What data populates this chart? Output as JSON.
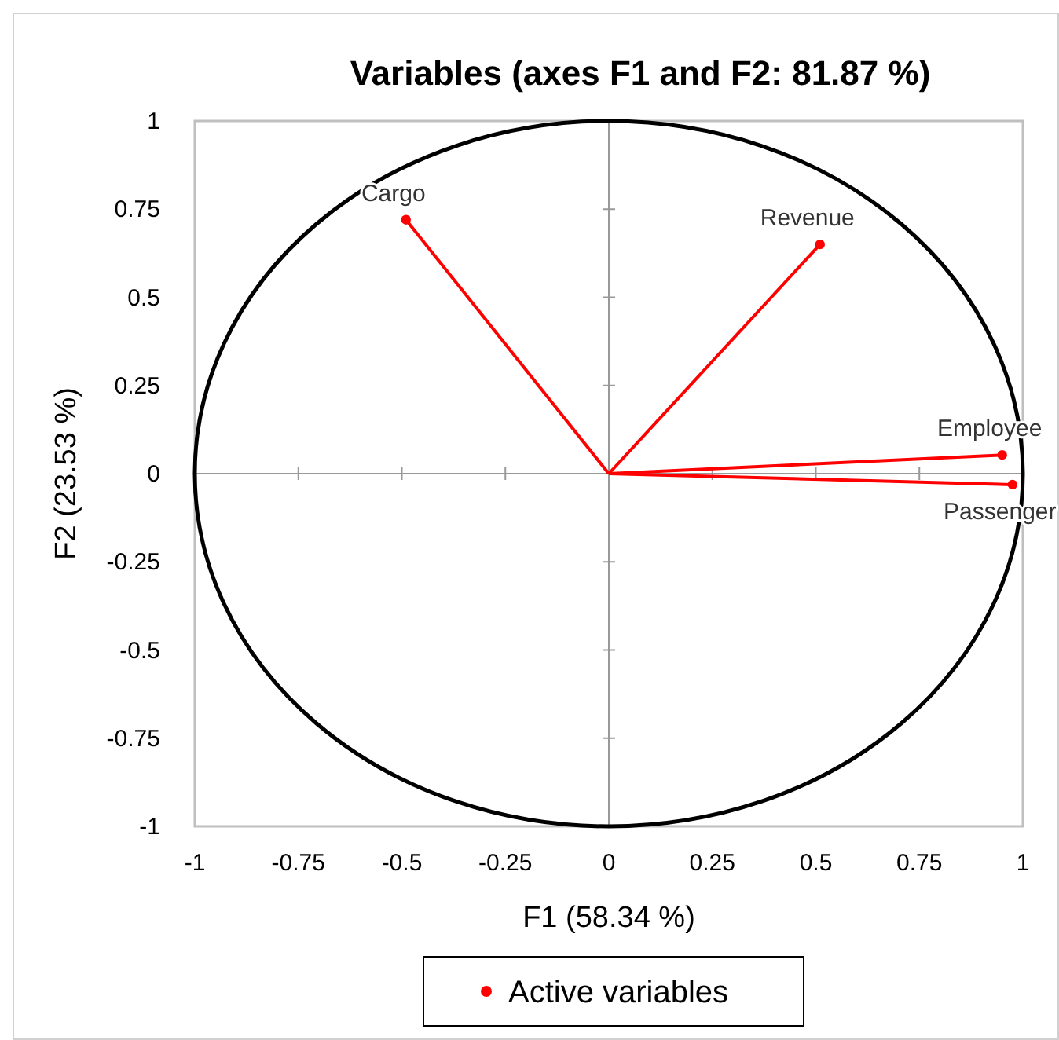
{
  "chart_data": {
    "type": "scatter",
    "title": "Variables (axes F1 and F2: 81.87 %)",
    "xlabel": "F1 (58.34 %)",
    "ylabel": "F2 (23.53 %)",
    "xlim": [
      -1,
      1
    ],
    "ylim": [
      -1,
      1
    ],
    "xticks": [
      -1,
      -0.75,
      -0.5,
      -0.25,
      0,
      0.25,
      0.5,
      0.75,
      1
    ],
    "yticks": [
      -1,
      -0.75,
      -0.5,
      -0.25,
      0,
      0.25,
      0.5,
      0.75,
      1
    ],
    "legend": "bottom",
    "series": [
      {
        "type": "line",
        "color": "#ff0000",
        "x": [
          0,
          -0.49
        ],
        "values": [
          0,
          0.72
        ],
        "marker": "none"
      },
      {
        "type": "line",
        "color": "#ff0000",
        "x": [
          0,
          0.51
        ],
        "values": [
          0,
          0.65
        ],
        "marker": "none"
      },
      {
        "type": "line",
        "color": "#ff0000",
        "x": [
          0,
          0.95
        ],
        "values": [
          0,
          0.053
        ],
        "marker": "none"
      },
      {
        "type": "line",
        "color": "#ff0000",
        "x": [
          0,
          0.975
        ],
        "values": [
          0,
          -0.031
        ],
        "marker": "none"
      },
      {
        "name": "Active variables",
        "color": "#ff0000",
        "marker": "circle",
        "x": [
          -0.49,
          0.51,
          0.95,
          0.975
        ],
        "values": [
          0.72,
          0.65,
          0.053,
          -0.031
        ]
      }
    ],
    "annotations": [
      {
        "text": "Cargo",
        "x": -0.49,
        "y": 0.72
      },
      {
        "text": "Revenue",
        "x": 0.51,
        "y": 0.65
      },
      {
        "text": "Employee",
        "x": 0.95,
        "y": 0.053
      },
      {
        "text": "Passenger",
        "x": 0.975,
        "y": -0.031
      }
    ]
  }
}
